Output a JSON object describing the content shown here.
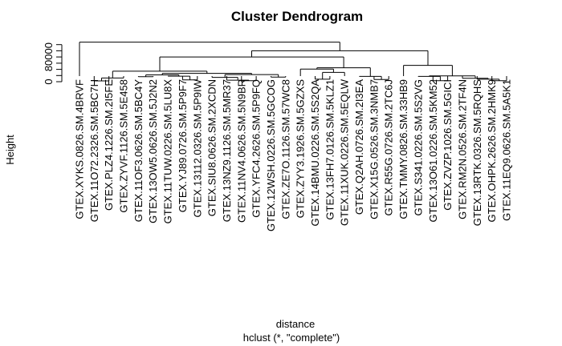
{
  "chart_data": {
    "type": "dendrogram",
    "title": "Cluster Dendrogram",
    "xlabel": "distance",
    "sublabel": "hclust (*, \"complete\")",
    "ylabel": "Height",
    "y_ticks": [
      0,
      80000
    ],
    "ylim": [
      0,
      140000
    ],
    "leaves": [
      "GTEX.XYKS.0826.SM.4BRVF",
      "GTEX.11O72.2326.SM.5BC7H",
      "GTEX.PLZ4.1226.SM.2I5FE",
      "GTEX.ZYVF.1126.SM.5E458",
      "GTEX.11OF3.0626.SM.5BC4Y",
      "GTEX.13OW5.0626.SM.5J2N2",
      "GTEX.11TUW.0226.SM.5LU8X",
      "GTEX.YJ89.0726.SM.5P9F7",
      "GTEX.13112.0326.SM.5P9IW",
      "GTEX.SIU8.0626.SM.2XCDN",
      "GTEX.13NZ9.1126.SM.5MR37",
      "GTEX.11NV4.0626.SM.5N9BR",
      "GTEX.YFC4.2626.SM.5P9FQ",
      "GTEX.12WSH.0226.SM.5GCOG",
      "GTEX.ZE7O.1126.SM.57WC8",
      "GTEX.ZYY3.1926.SM.5GZXS",
      "GTEX.14BMU.0226.SM.5S2QA",
      "GTEX.13FH7.0126.SM.5KLZ1",
      "GTEX.11XUK.0226.SM.5EQLW",
      "GTEX.Q2AH.0726.SM.2I3EA",
      "GTEX.X15G.0526.SM.3NMB7",
      "GTEX.R55G.0726.SM.2TC6J",
      "GTEX.TMMY.0826.SM.33HB9",
      "GTEX.S341.0226.SM.5S2VG",
      "GTEX.13O61.0226.SM.5KM52",
      "GTEX.ZVZP.1026.SM.5GICI",
      "GTEX.RM2N.0526.SM.2TF4N",
      "GTEX.13RTK.0326.SM.5RQHS",
      "GTEX.OHPK.2626.SM.2HMK9",
      "GTEX.11EQ9.0626.SM.5A5K1"
    ],
    "merges": [
      {
        "left": 1,
        "right": 2,
        "height": 2500
      },
      {
        "left": 11,
        "right": 12,
        "height": 3000
      },
      {
        "left": 24,
        "right": 25,
        "height": 3000
      },
      {
        "left": 28,
        "right": 29,
        "height": 3000
      },
      {
        "left": 10,
        "right": 31,
        "height": 5000
      },
      {
        "left": 7,
        "right": 8,
        "height": 6000
      },
      {
        "left": 20,
        "right": 21,
        "height": 7000
      },
      {
        "left": 16,
        "right": 17,
        "height": 8000
      },
      {
        "left": 27,
        "right": 33,
        "height": 8000
      },
      {
        "left": 26,
        "right": 38,
        "height": 11000
      },
      {
        "left": 3,
        "right": 30,
        "height": 12000
      },
      {
        "left": 9,
        "right": 34,
        "height": 14000
      },
      {
        "left": 13,
        "right": 14,
        "height": 15000
      },
      {
        "left": 4,
        "right": 5,
        "height": 16000
      },
      {
        "left": 19,
        "right": 36,
        "height": 17000
      },
      {
        "left": 23,
        "right": 32,
        "height": 17000
      },
      {
        "left": 6,
        "right": 35,
        "height": 18000
      },
      {
        "left": 45,
        "right": 39,
        "height": 19000
      },
      {
        "left": 43,
        "right": 46,
        "height": 22000
      },
      {
        "left": 41,
        "right": 42,
        "height": 23000
      },
      {
        "left": 48,
        "right": 49,
        "height": 27000
      },
      {
        "left": 37,
        "right": 18,
        "height": 30000
      },
      {
        "left": 40,
        "right": 50,
        "height": 34000
      },
      {
        "left": 15,
        "right": 51,
        "height": 41000
      },
      {
        "left": 44,
        "right": 53,
        "height": 45000
      },
      {
        "left": 22,
        "right": 47,
        "height": 53000
      },
      {
        "left": 52,
        "right": 54,
        "height": 80000
      },
      {
        "left": 56,
        "right": 55,
        "height": 100000
      },
      {
        "left": 0,
        "right": 57,
        "height": 128000
      }
    ]
  }
}
